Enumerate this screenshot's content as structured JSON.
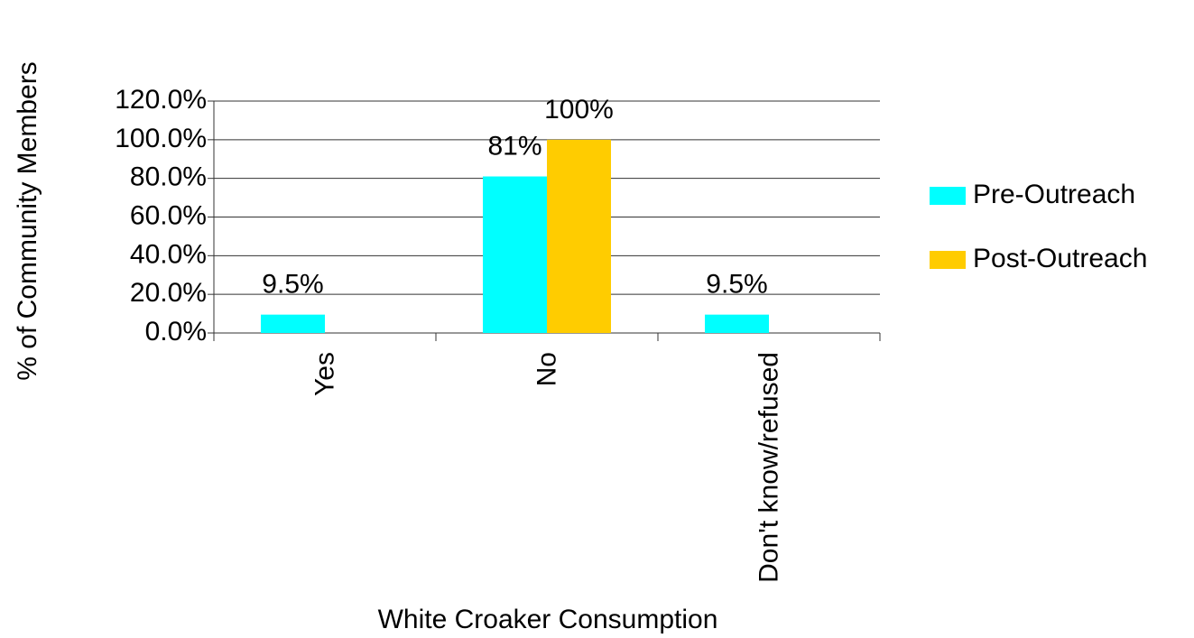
{
  "chart_data": {
    "type": "bar",
    "x_label": "White Croaker Consumption",
    "y_label": "% of Community Members",
    "categories": [
      "Yes",
      "No",
      "Don't know/refused"
    ],
    "series": [
      {
        "name": "Pre-Outreach",
        "color": "#00ffff",
        "values": [
          9.5,
          81,
          9.5
        ],
        "value_labels": [
          "9.5%",
          "81%",
          "9.5%"
        ]
      },
      {
        "name": "Post-Outreach",
        "color": "#ffcc00",
        "values": [
          null,
          100,
          null
        ],
        "value_labels": [
          null,
          "100%",
          null
        ]
      }
    ],
    "ylim": [
      0,
      120
    ],
    "yticks": [
      {
        "value": 0,
        "label": "0.0%"
      },
      {
        "value": 20,
        "label": "20.0%"
      },
      {
        "value": 40,
        "label": "40.0%"
      },
      {
        "value": 60,
        "label": "60.0%"
      },
      {
        "value": 80,
        "label": "80.0%"
      },
      {
        "value": 100,
        "label": "100.0%"
      },
      {
        "value": 120,
        "label": "120.0%"
      }
    ],
    "grid": true,
    "legend": "right"
  }
}
